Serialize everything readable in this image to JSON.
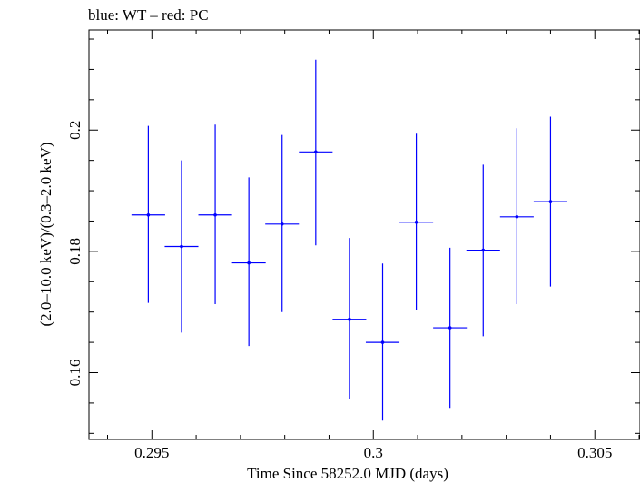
{
  "chart_data": {
    "type": "scatter",
    "title": "blue: WT – red: PC",
    "xlabel": "Time Since 58252.0 MJD (days)",
    "ylabel": "(2.0–10.0 keV)/(0.3–2.0 keV)",
    "xlim": [
      0.29358,
      0.30602
    ],
    "ylim": [
      0.149,
      0.2165
    ],
    "xticks": [
      0.295,
      0.3,
      0.305
    ],
    "xtick_labels": [
      "0.295",
      "0.3",
      "0.305"
    ],
    "yticks": [
      0.16,
      0.18,
      0.2
    ],
    "ytick_labels": [
      "0.16",
      "0.18",
      "0.2"
    ],
    "series": [
      {
        "name": "WT",
        "color": "#0000ff",
        "points": [
          {
            "x": 0.29492,
            "y": 0.186,
            "xerr": 0.00038,
            "ylo": 0.1715,
            "yhi": 0.2007
          },
          {
            "x": 0.29567,
            "y": 0.1808,
            "xerr": 0.00038,
            "ylo": 0.1666,
            "yhi": 0.195
          },
          {
            "x": 0.29643,
            "y": 0.186,
            "xerr": 0.00038,
            "ylo": 0.1713,
            "yhi": 0.2009
          },
          {
            "x": 0.29719,
            "y": 0.1781,
            "xerr": 0.00038,
            "ylo": 0.1644,
            "yhi": 0.1922
          },
          {
            "x": 0.29794,
            "y": 0.1845,
            "xerr": 0.00038,
            "ylo": 0.17,
            "yhi": 0.1992
          },
          {
            "x": 0.2987,
            "y": 0.1964,
            "xerr": 0.00038,
            "ylo": 0.181,
            "yhi": 0.2116
          },
          {
            "x": 0.29946,
            "y": 0.1688,
            "xerr": 0.00038,
            "ylo": 0.1556,
            "yhi": 0.1822
          },
          {
            "x": 0.30021,
            "y": 0.165,
            "xerr": 0.00038,
            "ylo": 0.1521,
            "yhi": 0.178
          },
          {
            "x": 0.30097,
            "y": 0.1848,
            "xerr": 0.00038,
            "ylo": 0.1704,
            "yhi": 0.1994
          },
          {
            "x": 0.30173,
            "y": 0.1674,
            "xerr": 0.00038,
            "ylo": 0.1542,
            "yhi": 0.1806
          },
          {
            "x": 0.30248,
            "y": 0.1802,
            "xerr": 0.00038,
            "ylo": 0.166,
            "yhi": 0.1943
          },
          {
            "x": 0.30324,
            "y": 0.1857,
            "xerr": 0.00038,
            "ylo": 0.1713,
            "yhi": 0.2003
          },
          {
            "x": 0.304,
            "y": 0.1882,
            "xerr": 0.00038,
            "ylo": 0.1742,
            "yhi": 0.2022
          }
        ]
      }
    ]
  }
}
